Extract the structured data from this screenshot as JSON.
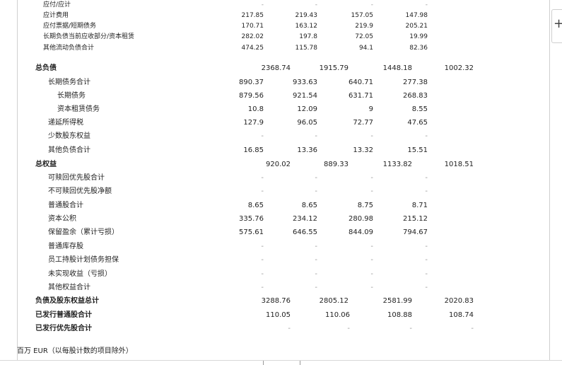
{
  "rows": [
    {
      "label": "应付/应计",
      "values": [
        "-",
        "-",
        "-",
        "-",
        ""
      ],
      "style": "small",
      "indent": 1
    },
    {
      "label": "应计费用",
      "values": [
        "217.85",
        "219.43",
        "157.05",
        "147.98",
        ""
      ],
      "style": "small",
      "indent": 1
    },
    {
      "label": "应付票据/短期债务",
      "values": [
        "170.71",
        "163.12",
        "219.9",
        "205.21",
        ""
      ],
      "style": "small",
      "indent": 1
    },
    {
      "label": "长期负债当前应收部分/资本租赁",
      "values": [
        "282.02",
        "197.8",
        "72.05",
        "19.99",
        ""
      ],
      "style": "small",
      "indent": 1
    },
    {
      "label": "其他流动负债合计",
      "values": [
        "474.25",
        "115.78",
        "94.1",
        "82.36",
        ""
      ],
      "style": "small",
      "indent": 1
    },
    {
      "label": "总负债",
      "values": [
        "2368.74",
        "1915.79",
        "1448.18",
        "1002.32"
      ],
      "style": "bold-shift",
      "indent": 0
    },
    {
      "label": "长期债务合计",
      "values": [
        "890.37",
        "933.63",
        "640.71",
        "277.38",
        ""
      ],
      "style": "normal",
      "indent": 1
    },
    {
      "label": "长期债务",
      "values": [
        "879.56",
        "921.54",
        "631.71",
        "268.83",
        ""
      ],
      "style": "normal",
      "indent": 2
    },
    {
      "label": "资本租赁债务",
      "values": [
        "10.8",
        "12.09",
        "9",
        "8.55",
        ""
      ],
      "style": "normal",
      "indent": 2
    },
    {
      "label": "递延所得税",
      "values": [
        "127.9",
        "96.05",
        "72.77",
        "47.65",
        ""
      ],
      "style": "normal",
      "indent": 1
    },
    {
      "label": "少数股东权益",
      "values": [
        "-",
        "-",
        "-",
        "-",
        ""
      ],
      "style": "normal",
      "indent": 1
    },
    {
      "label": "其他负债合计",
      "values": [
        "16.85",
        "13.36",
        "13.32",
        "15.51",
        ""
      ],
      "style": "normal",
      "indent": 1
    },
    {
      "label": "总权益",
      "values": [
        "920.02",
        "889.33",
        "1133.82",
        "1018.51"
      ],
      "style": "bold-shift",
      "indent": 0
    },
    {
      "label": "可赎回优先股合计",
      "values": [
        "-",
        "-",
        "-",
        "-",
        ""
      ],
      "style": "normal",
      "indent": 1
    },
    {
      "label": "不可赎回优先股净额",
      "values": [
        "-",
        "-",
        "-",
        "-",
        ""
      ],
      "style": "normal",
      "indent": 1
    },
    {
      "label": "普通股合计",
      "values": [
        "8.65",
        "8.65",
        "8.75",
        "8.71",
        ""
      ],
      "style": "normal",
      "indent": 1
    },
    {
      "label": "资本公积",
      "values": [
        "335.76",
        "234.12",
        "280.98",
        "215.12",
        ""
      ],
      "style": "normal",
      "indent": 1
    },
    {
      "label": "保留盈余（累计亏损）",
      "values": [
        "575.61",
        "646.55",
        "844.09",
        "794.67",
        ""
      ],
      "style": "normal",
      "indent": 1
    },
    {
      "label": "普通库存股",
      "values": [
        "-",
        "-",
        "-",
        "-",
        ""
      ],
      "style": "normal",
      "indent": 1
    },
    {
      "label": "员工持股计划债务担保",
      "values": [
        "-",
        "-",
        "-",
        "-",
        ""
      ],
      "style": "normal",
      "indent": 1
    },
    {
      "label": "未实现收益（亏损）",
      "values": [
        "-",
        "-",
        "-",
        "-",
        ""
      ],
      "style": "normal",
      "indent": 1
    },
    {
      "label": "其他权益合计",
      "values": [
        "-",
        "-",
        "-",
        "-",
        ""
      ],
      "style": "normal",
      "indent": 1
    },
    {
      "label": "负债及股东权益总计",
      "values": [
        "3288.76",
        "2805.12",
        "2581.99",
        "2020.83"
      ],
      "style": "bold-shift",
      "indent": 0
    },
    {
      "label": "已发行普通股合计",
      "values": [
        "110.05",
        "110.06",
        "108.88",
        "108.74"
      ],
      "style": "bold-shift2",
      "indent": 0
    },
    {
      "label": "已发行优先股合计",
      "values": [
        "-",
        "-",
        "-",
        "-"
      ],
      "style": "bold-shift2",
      "indent": 0
    }
  ],
  "footer": {
    "unit_note": "百万 EUR（以每股计数的项目除外）"
  },
  "ui": {
    "add_sheet_symbol": "+"
  }
}
